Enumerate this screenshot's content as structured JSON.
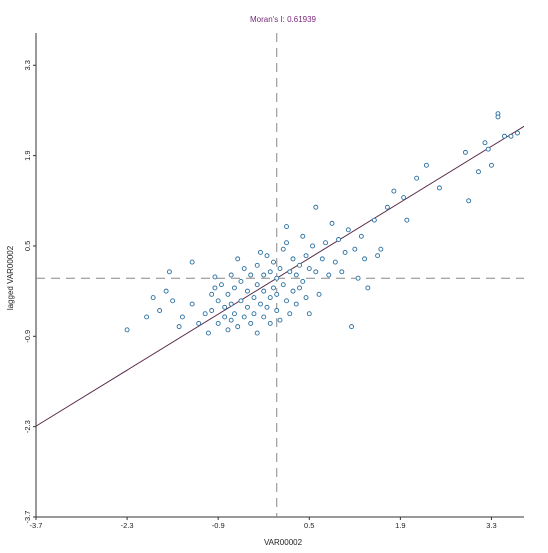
{
  "chart_data": {
    "type": "scatter",
    "title": "Moran's I: 0.61939",
    "xlabel": "VAR00002",
    "ylabel": "lagged VAR00002",
    "xlim": [
      -3.7,
      3.8
    ],
    "ylim": [
      -3.7,
      3.8
    ],
    "xticks": [
      "-3.7",
      "-2.3",
      "-0.9",
      "0.5",
      "1.9",
      "3.3"
    ],
    "yticks": [
      "-3.7",
      "-2.3",
      "-0.9",
      "0.5",
      "1.9",
      "3.3"
    ],
    "xtick_values": [
      -3.7,
      -2.3,
      -0.9,
      0.5,
      1.9,
      3.3
    ],
    "ytick_values": [
      -3.7,
      -2.3,
      -0.9,
      0.5,
      1.9,
      3.3
    ],
    "grid": false,
    "crosshair": {
      "x": 0,
      "y": 0
    },
    "regression_line": {
      "slope": 0.61939,
      "intercept": 0
    },
    "colors": {
      "points": "#2a6fa0",
      "line": "#5a2a4a",
      "crosshair": "#888888",
      "title": "#7a2a7a"
    },
    "points": [
      [
        -2.3,
        -0.8
      ],
      [
        -2.0,
        -0.6
      ],
      [
        -1.9,
        -0.3
      ],
      [
        -1.8,
        -0.5
      ],
      [
        -1.7,
        -0.2
      ],
      [
        -1.65,
        0.1
      ],
      [
        -1.6,
        -0.35
      ],
      [
        -1.5,
        -0.75
      ],
      [
        -1.45,
        -0.6
      ],
      [
        -1.3,
        -0.4
      ],
      [
        -1.3,
        0.25
      ],
      [
        -1.2,
        -0.7
      ],
      [
        -1.1,
        -0.55
      ],
      [
        -1.05,
        -0.85
      ],
      [
        -1.0,
        -0.5
      ],
      [
        -1.0,
        -0.25
      ],
      [
        -0.95,
        -0.15
      ],
      [
        -0.95,
        0.02
      ],
      [
        -0.9,
        -0.35
      ],
      [
        -0.9,
        -0.7
      ],
      [
        -0.85,
        -0.1
      ],
      [
        -0.8,
        -0.6
      ],
      [
        -0.8,
        -0.45
      ],
      [
        -0.75,
        -0.8
      ],
      [
        -0.75,
        -0.25
      ],
      [
        -0.7,
        -0.65
      ],
      [
        -0.7,
        -0.4
      ],
      [
        -0.7,
        0.05
      ],
      [
        -0.65,
        -0.15
      ],
      [
        -0.65,
        -0.55
      ],
      [
        -0.6,
        0.3
      ],
      [
        -0.6,
        -0.75
      ],
      [
        -0.55,
        -0.35
      ],
      [
        -0.55,
        -0.05
      ],
      [
        -0.5,
        -0.6
      ],
      [
        -0.5,
        0.15
      ],
      [
        -0.45,
        -0.45
      ],
      [
        -0.45,
        -0.2
      ],
      [
        -0.4,
        -0.7
      ],
      [
        -0.4,
        0.05
      ],
      [
        -0.35,
        -0.3
      ],
      [
        -0.35,
        -0.55
      ],
      [
        -0.3,
        0.2
      ],
      [
        -0.3,
        -0.1
      ],
      [
        -0.3,
        -0.85
      ],
      [
        -0.25,
        -0.4
      ],
      [
        -0.25,
        0.4
      ],
      [
        -0.2,
        -0.6
      ],
      [
        -0.2,
        -0.2
      ],
      [
        -0.2,
        0.05
      ],
      [
        -0.15,
        0.35
      ],
      [
        -0.15,
        -0.45
      ],
      [
        -0.1,
        -0.7
      ],
      [
        -0.1,
        0.1
      ],
      [
        -0.1,
        -0.3
      ],
      [
        -0.05,
        -0.15
      ],
      [
        -0.05,
        0.25
      ],
      [
        0.0,
        -0.5
      ],
      [
        0.0,
        0.0
      ],
      [
        0.0,
        -0.25
      ],
      [
        0.05,
        0.15
      ],
      [
        0.05,
        -0.65
      ],
      [
        0.1,
        0.45
      ],
      [
        0.1,
        -0.1
      ],
      [
        0.15,
        -0.35
      ],
      [
        0.15,
        0.55
      ],
      [
        0.15,
        0.8
      ],
      [
        0.2,
        0.1
      ],
      [
        0.2,
        -0.55
      ],
      [
        0.25,
        -0.2
      ],
      [
        0.25,
        0.3
      ],
      [
        0.3,
        -0.4
      ],
      [
        0.3,
        0.05
      ],
      [
        0.35,
        0.2
      ],
      [
        0.35,
        -0.15
      ],
      [
        0.4,
        0.65
      ],
      [
        0.4,
        -0.05
      ],
      [
        0.45,
        -0.3
      ],
      [
        0.45,
        0.35
      ],
      [
        0.5,
        0.15
      ],
      [
        0.5,
        -0.55
      ],
      [
        0.55,
        0.5
      ],
      [
        0.6,
        0.1
      ],
      [
        0.6,
        1.1
      ],
      [
        0.65,
        -0.25
      ],
      [
        0.7,
        0.3
      ],
      [
        0.75,
        0.55
      ],
      [
        0.8,
        0.05
      ],
      [
        0.85,
        0.85
      ],
      [
        0.9,
        0.25
      ],
      [
        0.95,
        0.6
      ],
      [
        1.0,
        0.1
      ],
      [
        1.05,
        0.4
      ],
      [
        1.1,
        0.75
      ],
      [
        1.15,
        -0.75
      ],
      [
        1.2,
        0.45
      ],
      [
        1.25,
        0.0
      ],
      [
        1.3,
        0.65
      ],
      [
        1.35,
        0.3
      ],
      [
        1.4,
        -0.15
      ],
      [
        1.5,
        0.9
      ],
      [
        1.55,
        0.35
      ],
      [
        1.6,
        0.45
      ],
      [
        1.7,
        1.1
      ],
      [
        1.8,
        1.35
      ],
      [
        1.95,
        1.25
      ],
      [
        2.0,
        0.9
      ],
      [
        2.15,
        1.55
      ],
      [
        2.3,
        1.75
      ],
      [
        2.5,
        1.4
      ],
      [
        2.9,
        1.95
      ],
      [
        2.95,
        1.2
      ],
      [
        3.1,
        1.65
      ],
      [
        3.2,
        2.1
      ],
      [
        3.25,
        2.0
      ],
      [
        3.3,
        1.75
      ],
      [
        3.4,
        2.55
      ],
      [
        3.4,
        2.5
      ],
      [
        3.5,
        2.2
      ],
      [
        3.6,
        2.2
      ],
      [
        3.7,
        2.25
      ]
    ]
  }
}
